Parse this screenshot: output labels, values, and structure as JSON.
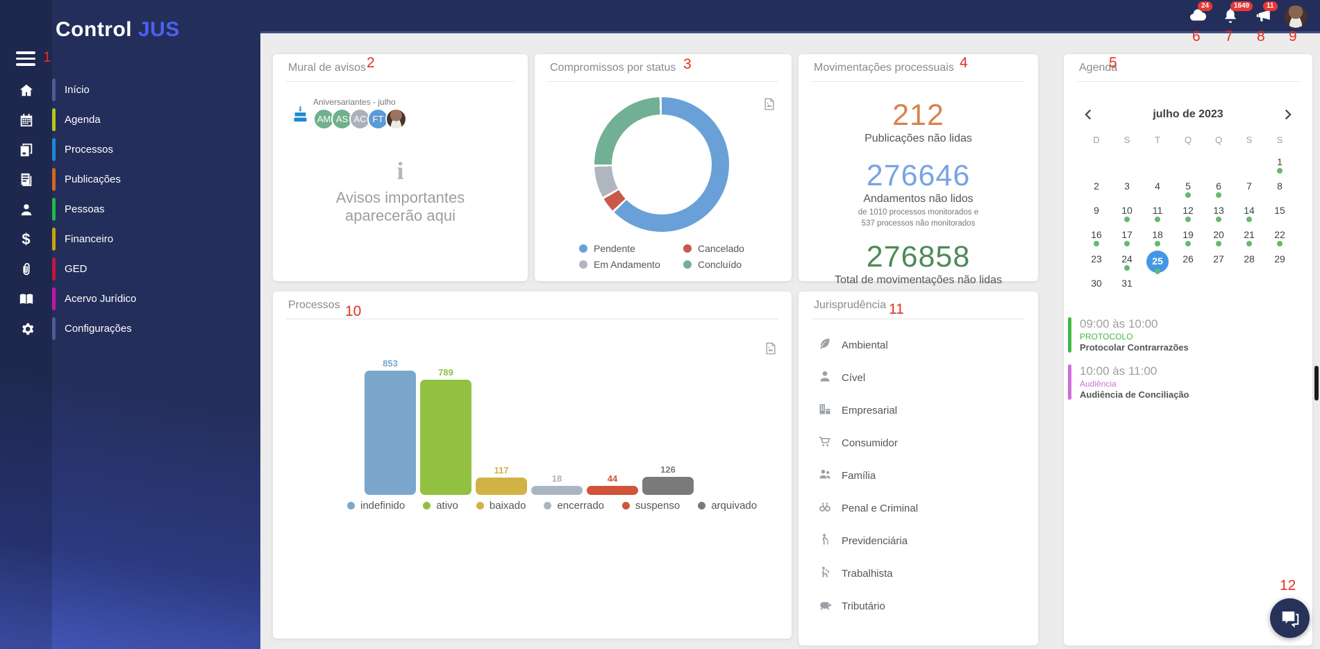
{
  "app": {
    "brand": {
      "primary": "Control",
      "accent": "JUS",
      "accent_color": "#4a62f2"
    }
  },
  "topbar": {
    "badge_color": "#e53935",
    "notifications": [
      {
        "icon": "cloud-icon",
        "count": "24"
      },
      {
        "icon": "bell-icon",
        "count": "1649"
      },
      {
        "icon": "megaphone-icon",
        "count": "11"
      }
    ]
  },
  "sidebar": {
    "items": [
      {
        "label": "Início",
        "icon": "home-icon",
        "accent": "#505c90"
      },
      {
        "label": "Agenda",
        "icon": "calendar-icon",
        "accent": "#b2c818"
      },
      {
        "label": "Processos",
        "icon": "processes-icon",
        "accent": "#1e87d5"
      },
      {
        "label": "Publicações",
        "icon": "publications-icon",
        "accent": "#d2651e"
      },
      {
        "label": "Pessoas",
        "icon": "people-icon",
        "accent": "#21b84a"
      },
      {
        "label": "Financeiro",
        "icon": "finance-icon",
        "accent": "#c7a50b"
      },
      {
        "label": "GED",
        "icon": "attachment-icon",
        "accent": "#c41440"
      },
      {
        "label": "Acervo Jurídico",
        "icon": "library-icon",
        "accent": "#c514a5"
      },
      {
        "label": "Configurações",
        "icon": "settings-icon",
        "accent": "#505c90"
      }
    ]
  },
  "cards": {
    "mural": {
      "title": "Mural de avisos",
      "birthdays_label": "Aniversariantes - julho",
      "avatars": [
        {
          "initials": "AM",
          "color": "#6fb08d"
        },
        {
          "initials": "AS",
          "color": "#6fb08d"
        },
        {
          "initials": "AC",
          "color": "#a9b2ba"
        },
        {
          "initials": "FT",
          "color": "#5b9bd5"
        },
        {
          "initials": "",
          "color": "photo"
        }
      ],
      "empty_line1": "Avisos importantes",
      "empty_line2": "aparecerão aqui"
    },
    "compromissos": {
      "title": "Compromissos por status"
    },
    "movimentacoes": {
      "title": "Movimentações processuais",
      "stats": [
        {
          "value": "212",
          "label": "Publicações não lidas",
          "color": "#d9824f",
          "sub1": "",
          "sub2": ""
        },
        {
          "value": "276646",
          "label": "Andamentos não lidos",
          "color": "#76a4e3",
          "sub1": "de 1010 processos monitorados e",
          "sub2": "537 processos não monitorados"
        },
        {
          "value": "276858",
          "label": "Total de movimentações não lidas",
          "color": "#4b8b57",
          "sub1": "",
          "sub2": ""
        }
      ]
    },
    "agenda": {
      "title": "Agenda",
      "month_label": "julho de 2023",
      "weekdays": [
        "D",
        "S",
        "T",
        "Q",
        "Q",
        "S",
        "S"
      ],
      "days_in_month": 31,
      "first_day_offset": 6,
      "selected_day": 25,
      "event_days": [
        1,
        5,
        6,
        10,
        11,
        12,
        13,
        14,
        16,
        17,
        18,
        19,
        20,
        21,
        22,
        24,
        25
      ],
      "selected_color": "#4397e7",
      "dot_color": "#66b96a",
      "events": [
        {
          "time": "09:00 às 10:00",
          "category": "PROTOCOLO",
          "title": "Protocolar Contrarrazões",
          "color": "#44b748"
        },
        {
          "time": "10:00 às 11:00",
          "category": "Audiência",
          "title": "Audiência de Conciliação",
          "color": "#cc6fd6"
        }
      ]
    },
    "processos": {
      "title": "Processos"
    },
    "jurisprudencia": {
      "title": "Jurisprudência",
      "items": [
        {
          "icon": "leaf-icon",
          "label": "Ambiental"
        },
        {
          "icon": "person-icon",
          "label": "Cível"
        },
        {
          "icon": "building-icon",
          "label": "Empresarial"
        },
        {
          "icon": "cart-icon",
          "label": "Consumidor"
        },
        {
          "icon": "family-icon",
          "label": "Família"
        },
        {
          "icon": "handcuffs-icon",
          "label": "Penal e Criminal"
        },
        {
          "icon": "elderly-icon",
          "label": "Previdenciária"
        },
        {
          "icon": "worker-icon",
          "label": "Trabalhista"
        },
        {
          "icon": "piggy-bank-icon",
          "label": "Tributário"
        }
      ]
    }
  },
  "chart_data": [
    {
      "type": "pie",
      "title": "Compromissos por status",
      "labels": [
        "Pendente",
        "Cancelado",
        "Em Andamento",
        "Concluído"
      ],
      "values": [
        63,
        4,
        8,
        25
      ],
      "colors": [
        "#6aa0d8",
        "#c9584a",
        "#b0b6bf",
        "#72b095"
      ],
      "donut": true,
      "legend_position": "bottom"
    },
    {
      "type": "bar",
      "title": "Processos",
      "categories": [
        "indefinido",
        "ativo",
        "baixado",
        "encerrado",
        "suspenso",
        "arquivado"
      ],
      "values": [
        853,
        789,
        117,
        18,
        44,
        126
      ],
      "colors": [
        "#7ba7cd",
        "#92c142",
        "#d1b244",
        "#a9b6c2",
        "#d05438",
        "#7a7a7a"
      ],
      "ylim": [
        0,
        900
      ],
      "legend_position": "bottom",
      "grid": false
    }
  ],
  "annotations": [
    "1",
    "2",
    "3",
    "4",
    "5",
    "6",
    "7",
    "8",
    "9",
    "10",
    "11",
    "12"
  ]
}
